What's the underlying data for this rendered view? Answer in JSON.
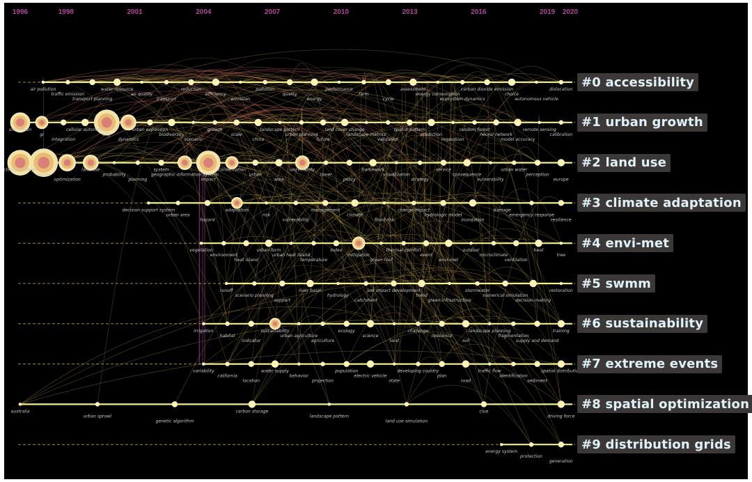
{
  "chart_data": {
    "type": "timeline",
    "years": [
      "1996",
      "1998",
      "2001",
      "2004",
      "2007",
      "2010",
      "2013",
      "2016",
      "2019",
      "2020"
    ],
    "clusters": [
      {
        "label": "#0 accessibility",
        "keywords": [
          "air pollution",
          "traffic emission",
          "transport planning",
          "water resource",
          "air quality",
          "transport",
          "reduction",
          "efficiency",
          "emission",
          "pollution",
          "quality",
          "energy",
          "performance",
          "farm",
          "cycle",
          "assessment",
          "energy consumption",
          "ecosystem dynamics",
          "carbon dioxide emission",
          "choice",
          "autonomous vehicle",
          "dislocation"
        ]
      },
      {
        "label": "#1 urban growth",
        "keywords": [
          "simulation",
          "gi",
          "integration",
          "cellular automata",
          "city",
          "dynamics",
          "urban expansion",
          "biodiversity",
          "scenario",
          "growth",
          "scale",
          "china",
          "landscape pattern",
          "urban planning",
          "future",
          "land cover change",
          "landscape metrics",
          "validation",
          "spatial pattern",
          "prediction",
          "regression",
          "random forest",
          "neural network",
          "model accuracy",
          "remote sensing",
          "calibration"
        ]
      },
      {
        "label": "#2 land use",
        "keywords": [
          "climate change",
          "model",
          "optimization",
          "land use",
          "probability",
          "planning",
          "system",
          "geographic information system",
          "impact",
          "conservation",
          "urban",
          "area",
          "uncertainty",
          "cover",
          "policy",
          "framework",
          "visualization",
          "strategy",
          "service",
          "consequence",
          "vulnerability",
          "urban water",
          "perception",
          "europe"
        ]
      },
      {
        "label": "#3 climate adaptation",
        "keywords": [
          "decision support system",
          "urban area",
          "hazard",
          "adaptation",
          "risk",
          "vulnerability",
          "management",
          "climate",
          "flood risk",
          "change impact",
          "hydrologic model",
          "inundation",
          "damage",
          "emergency response",
          "resilience"
        ]
      },
      {
        "label": "#4 envi-met",
        "keywords": [
          "vegetation",
          "environment",
          "heat island",
          "urban form",
          "urban heat island",
          "temperature",
          "index",
          "mitigation",
          "green roof",
          "thermal comfort",
          "event",
          "envi-met",
          "outdoor",
          "microclimate",
          "ventilation",
          "heat",
          "tree"
        ]
      },
      {
        "label": "#5 swmm",
        "keywords": [
          "runoff",
          "scenario planning",
          "support",
          "river basin",
          "hydrology",
          "catchment",
          "low impact development",
          "trend",
          "green infrastructure",
          "stormwater",
          "numerical simulation",
          "decision-making",
          "restoration"
        ]
      },
      {
        "label": "#6 sustainability",
        "keywords": [
          "irrigation",
          "habitat",
          "indicator",
          "sustainability",
          "urban agriculture",
          "agriculture",
          "ecology",
          "science",
          "land",
          "challenge",
          "resilience",
          "soil",
          "landscape planning",
          "fragmentation",
          "supply and demand",
          "training"
        ]
      },
      {
        "label": "#7 extreme events",
        "keywords": [
          "variability",
          "california",
          "location",
          "water supply",
          "behavior",
          "projection",
          "population",
          "electric vehicle",
          "state",
          "developing country",
          "plan",
          "road",
          "traffic flow",
          "identification",
          "sediment",
          "spatial distribution"
        ]
      },
      {
        "label": "#8 spatial optimization",
        "keywords": [
          "australia",
          "urban sprawl",
          "genetic algorithm",
          "carbon storage",
          "landscape pattern",
          "land use simulation",
          "clue",
          "driving force"
        ]
      },
      {
        "label": "#9 distribution grids",
        "keywords": [
          "energy system",
          "protection",
          "generation"
        ]
      }
    ]
  }
}
